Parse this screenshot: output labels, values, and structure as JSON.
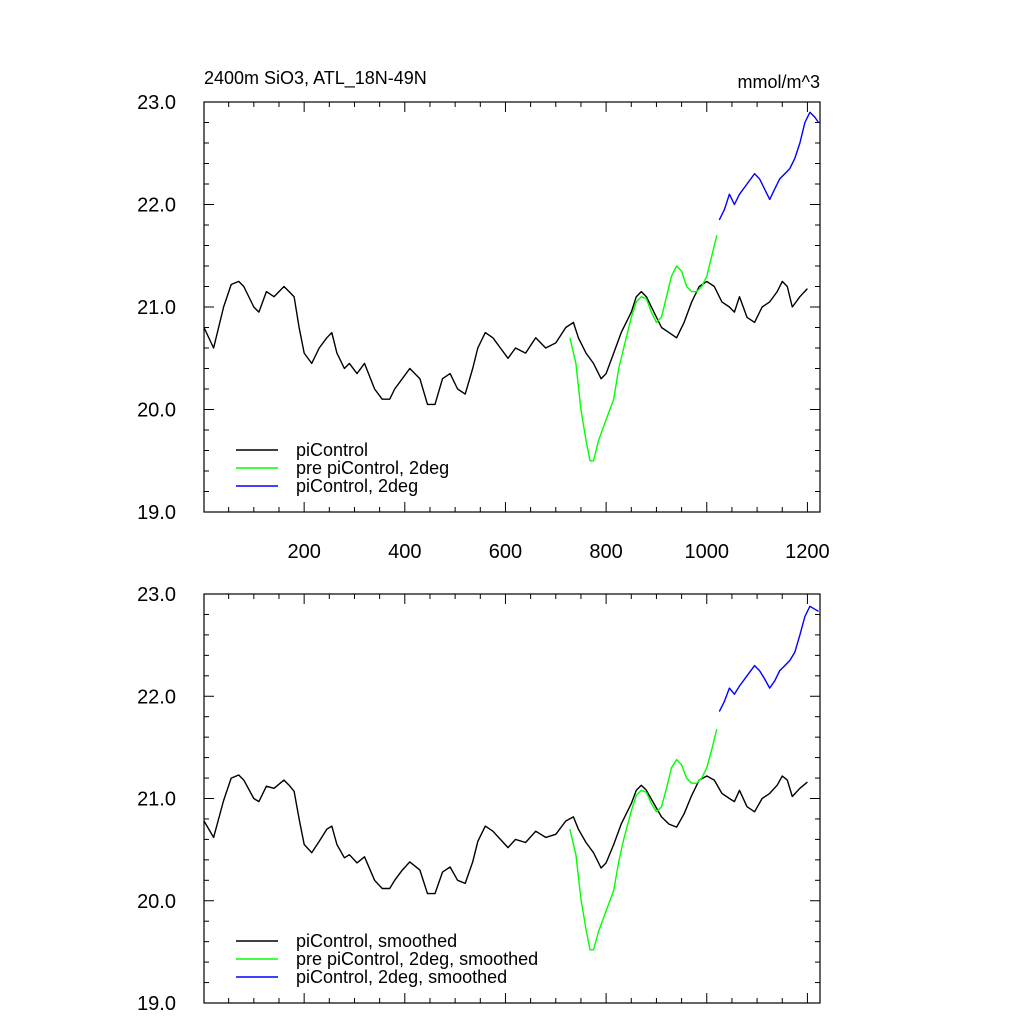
{
  "figure": {
    "title_left": "2400m SiO3, ATL_18N-49N",
    "title_right": "mmol/m^3"
  },
  "chart_data": [
    {
      "type": "line",
      "title": "2400m SiO3, ATL_18N-49N",
      "units": "mmol/m^3",
      "xlabel": "",
      "ylabel": "",
      "xlim": [
        1,
        1225
      ],
      "ylim": [
        19.0,
        23.0
      ],
      "grid": false,
      "legend_position": "bottom-left",
      "x_ticks": [
        "200",
        "400",
        "600",
        "800",
        "1000",
        "1200"
      ],
      "y_ticks": [
        "19.0",
        "20.0",
        "21.0",
        "22.0",
        "23.0"
      ],
      "series": [
        {
          "name": "piControl",
          "color": "#000000",
          "x": [
            1,
            20,
            40,
            55,
            70,
            80,
            100,
            110,
            125,
            140,
            160,
            170,
            180,
            190,
            200,
            215,
            230,
            245,
            255,
            265,
            280,
            290,
            305,
            320,
            340,
            355,
            370,
            380,
            395,
            410,
            430,
            445,
            460,
            475,
            490,
            505,
            520,
            535,
            545,
            560,
            575,
            590,
            605,
            620,
            640,
            660,
            680,
            700,
            720,
            735,
            745,
            760,
            775,
            790,
            800,
            815,
            830,
            850,
            860,
            870,
            880,
            895,
            910,
            925,
            940,
            955,
            970,
            985,
            1000,
            1015,
            1030,
            1045,
            1055,
            1065,
            1080,
            1095,
            1110,
            1125,
            1140,
            1150,
            1160,
            1170,
            1185,
            1200
          ],
          "values": [
            20.8,
            20.6,
            21.0,
            21.22,
            21.25,
            21.2,
            21.0,
            20.95,
            21.15,
            21.1,
            21.2,
            21.15,
            21.1,
            20.8,
            20.55,
            20.45,
            20.6,
            20.7,
            20.75,
            20.55,
            20.4,
            20.45,
            20.35,
            20.45,
            20.2,
            20.1,
            20.1,
            20.2,
            20.3,
            20.4,
            20.3,
            20.05,
            20.05,
            20.3,
            20.35,
            20.2,
            20.15,
            20.4,
            20.6,
            20.75,
            20.7,
            20.6,
            20.5,
            20.6,
            20.55,
            20.7,
            20.6,
            20.65,
            20.8,
            20.85,
            20.7,
            20.55,
            20.45,
            20.3,
            20.35,
            20.55,
            20.75,
            20.95,
            21.1,
            21.15,
            21.1,
            20.95,
            20.8,
            20.75,
            20.7,
            20.85,
            21.05,
            21.2,
            21.25,
            21.2,
            21.05,
            21.0,
            20.95,
            21.1,
            20.9,
            20.85,
            21.0,
            21.05,
            21.15,
            21.25,
            21.2,
            21.0,
            21.1,
            21.18
          ]
        },
        {
          "name": "pre piControl, 2deg",
          "color": "#00ff00",
          "x": [
            728,
            740,
            750,
            760,
            768,
            775,
            785,
            800,
            815,
            825,
            835,
            850,
            860,
            870,
            880,
            890,
            900,
            910,
            920,
            930,
            940,
            950,
            960,
            970,
            980,
            990,
            1000,
            1010,
            1020
          ],
          "values": [
            20.7,
            20.45,
            20.0,
            19.7,
            19.5,
            19.5,
            19.7,
            19.9,
            20.1,
            20.4,
            20.6,
            20.9,
            21.05,
            21.1,
            21.08,
            20.95,
            20.85,
            20.9,
            21.1,
            21.3,
            21.4,
            21.35,
            21.2,
            21.15,
            21.15,
            21.2,
            21.3,
            21.5,
            21.7
          ]
        },
        {
          "name": "piControl, 2deg",
          "color": "#0000ff",
          "x": [
            1025,
            1035,
            1045,
            1055,
            1065,
            1080,
            1095,
            1105,
            1115,
            1125,
            1135,
            1145,
            1155,
            1165,
            1175,
            1185,
            1195,
            1205,
            1215,
            1222
          ],
          "values": [
            21.85,
            21.95,
            22.1,
            22.0,
            22.1,
            22.2,
            22.3,
            22.25,
            22.15,
            22.05,
            22.15,
            22.25,
            22.3,
            22.35,
            22.45,
            22.6,
            22.8,
            22.9,
            22.85,
            22.8
          ]
        }
      ]
    },
    {
      "type": "line",
      "title": "",
      "xlabel": "",
      "ylabel": "",
      "xlim": [
        1,
        1225
      ],
      "ylim": [
        19.0,
        23.0
      ],
      "grid": false,
      "legend_position": "bottom-left",
      "x_ticks": [],
      "y_ticks": [
        "19.0",
        "20.0",
        "21.0",
        "22.0",
        "23.0"
      ],
      "series": [
        {
          "name": "piControl, smoothed",
          "color": "#000000",
          "x": [
            1,
            20,
            40,
            55,
            70,
            80,
            100,
            110,
            125,
            140,
            160,
            170,
            180,
            190,
            200,
            215,
            230,
            245,
            255,
            265,
            280,
            290,
            305,
            320,
            340,
            355,
            370,
            380,
            395,
            410,
            430,
            445,
            460,
            475,
            490,
            505,
            520,
            535,
            545,
            560,
            575,
            590,
            605,
            620,
            640,
            660,
            680,
            700,
            720,
            735,
            745,
            760,
            775,
            790,
            800,
            815,
            830,
            850,
            860,
            870,
            880,
            895,
            910,
            925,
            940,
            955,
            970,
            985,
            1000,
            1015,
            1030,
            1045,
            1055,
            1065,
            1080,
            1095,
            1110,
            1125,
            1140,
            1150,
            1160,
            1170,
            1185,
            1200
          ],
          "values": [
            20.78,
            20.62,
            20.98,
            21.2,
            21.23,
            21.18,
            21.0,
            20.97,
            21.12,
            21.1,
            21.18,
            21.13,
            21.07,
            20.8,
            20.55,
            20.47,
            20.58,
            20.7,
            20.73,
            20.55,
            20.42,
            20.45,
            20.37,
            20.43,
            20.2,
            20.12,
            20.12,
            20.2,
            20.3,
            20.38,
            20.3,
            20.07,
            20.07,
            20.28,
            20.33,
            20.2,
            20.17,
            20.38,
            20.58,
            20.73,
            20.68,
            20.6,
            20.52,
            20.6,
            20.57,
            20.68,
            20.62,
            20.65,
            20.78,
            20.82,
            20.7,
            20.57,
            20.47,
            20.32,
            20.37,
            20.55,
            20.75,
            20.95,
            21.08,
            21.13,
            21.08,
            20.95,
            20.82,
            20.75,
            20.72,
            20.85,
            21.03,
            21.18,
            21.22,
            21.18,
            21.05,
            21.0,
            20.97,
            21.08,
            20.92,
            20.87,
            21.0,
            21.05,
            21.13,
            21.22,
            21.18,
            21.02,
            21.1,
            21.16
          ]
        },
        {
          "name": "pre piControl, 2deg, smoothed",
          "color": "#00ff00",
          "x": [
            728,
            740,
            750,
            760,
            768,
            775,
            785,
            800,
            815,
            825,
            835,
            850,
            860,
            870,
            880,
            890,
            900,
            910,
            920,
            930,
            940,
            950,
            960,
            970,
            980,
            990,
            1000,
            1010,
            1020
          ],
          "values": [
            20.7,
            20.45,
            20.02,
            19.72,
            19.52,
            19.52,
            19.7,
            19.9,
            20.1,
            20.38,
            20.6,
            20.88,
            21.03,
            21.08,
            21.06,
            20.95,
            20.87,
            20.92,
            21.1,
            21.3,
            21.38,
            21.33,
            21.2,
            21.15,
            21.15,
            21.2,
            21.3,
            21.48,
            21.68
          ]
        },
        {
          "name": "piControl, 2deg, smoothed",
          "color": "#0000ff",
          "x": [
            1025,
            1035,
            1045,
            1055,
            1065,
            1080,
            1095,
            1105,
            1115,
            1125,
            1135,
            1145,
            1155,
            1165,
            1175,
            1185,
            1195,
            1205,
            1215,
            1222
          ],
          "values": [
            21.85,
            21.95,
            22.08,
            22.02,
            22.1,
            22.2,
            22.3,
            22.25,
            22.17,
            22.08,
            22.15,
            22.25,
            22.3,
            22.35,
            22.43,
            22.6,
            22.78,
            22.88,
            22.85,
            22.83
          ]
        }
      ]
    }
  ]
}
